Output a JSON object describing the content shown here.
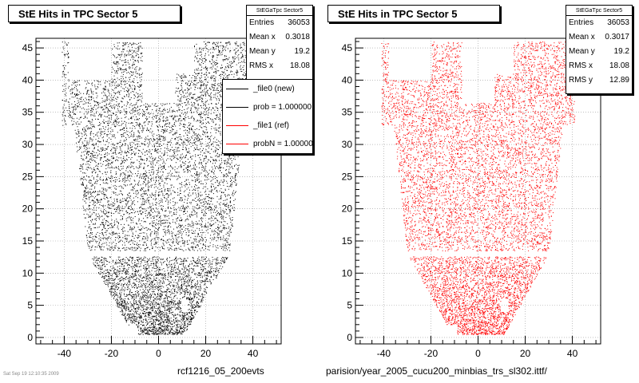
{
  "panels": [
    {
      "title": "StE Hits in TPC Sector 5",
      "stats": {
        "title": "StEGaTpc Sector5",
        "rows": [
          {
            "label": "Entries",
            "value": "36053"
          },
          {
            "label": "Mean x",
            "value": "0.3018"
          },
          {
            "label": "Mean y",
            "value": "19.2"
          },
          {
            "label": "RMS x",
            "value": "18.08"
          }
        ]
      },
      "file_label": "rcf1216_05_200evts"
    },
    {
      "title": "StE Hits in TPC Sector 5",
      "stats": {
        "title": "StEGaTpc Sector5",
        "rows": [
          {
            "label": "Entries",
            "value": "36053"
          },
          {
            "label": "Mean x",
            "value": "0.3017"
          },
          {
            "label": "Mean y",
            "value": "19.2"
          },
          {
            "label": "RMS x",
            "value": "18.08"
          },
          {
            "label": "RMS y",
            "value": "12.89"
          }
        ]
      },
      "file_label": "parision/year_2005_cucu200_minbias_trs_sl302.ittf/"
    }
  ],
  "legend": [
    {
      "label": "_file0 (new)",
      "color": "#000000"
    },
    {
      "label": "prob = 1.000000",
      "color": "#000000"
    },
    {
      "label": "_file1 (ref)",
      "color": "#ff0000"
    },
    {
      "label": "probN = 1.000000",
      "color": "#ff0000"
    }
  ],
  "footer_text": "Sat Sep 19 12:10:35 2009",
  "chart_data": [
    {
      "type": "scatter",
      "title": "StE Hits in TPC Sector 5",
      "xlabel": "",
      "ylabel": "",
      "xlim": [
        -52,
        52
      ],
      "ylim": [
        -1,
        46.5
      ],
      "xticks": [
        -40,
        -20,
        0,
        20,
        40
      ],
      "yticks": [
        0,
        5,
        10,
        15,
        20,
        25,
        30,
        35,
        40,
        45
      ],
      "grid": true,
      "marker_color": "#000000",
      "series": [
        {
          "name": "_file0 (new)",
          "entries": 36053,
          "mean_x": 0.3018,
          "mean_y": 19.2,
          "rms_x": 18.08
        }
      ]
    },
    {
      "type": "scatter",
      "title": "StE Hits in TPC Sector 5",
      "xlabel": "",
      "ylabel": "",
      "xlim": [
        -52,
        52
      ],
      "ylim": [
        -1,
        46.5
      ],
      "xticks": [
        -40,
        -20,
        0,
        20,
        40
      ],
      "yticks": [
        0,
        5,
        10,
        15,
        20,
        25,
        30,
        35,
        40,
        45
      ],
      "grid": true,
      "marker_color": "#ff0000",
      "series": [
        {
          "name": "_file1 (ref)",
          "entries": 36053,
          "mean_x": 0.3017,
          "mean_y": 19.2,
          "rms_x": 18.08,
          "rms_y": 12.89
        }
      ]
    }
  ]
}
